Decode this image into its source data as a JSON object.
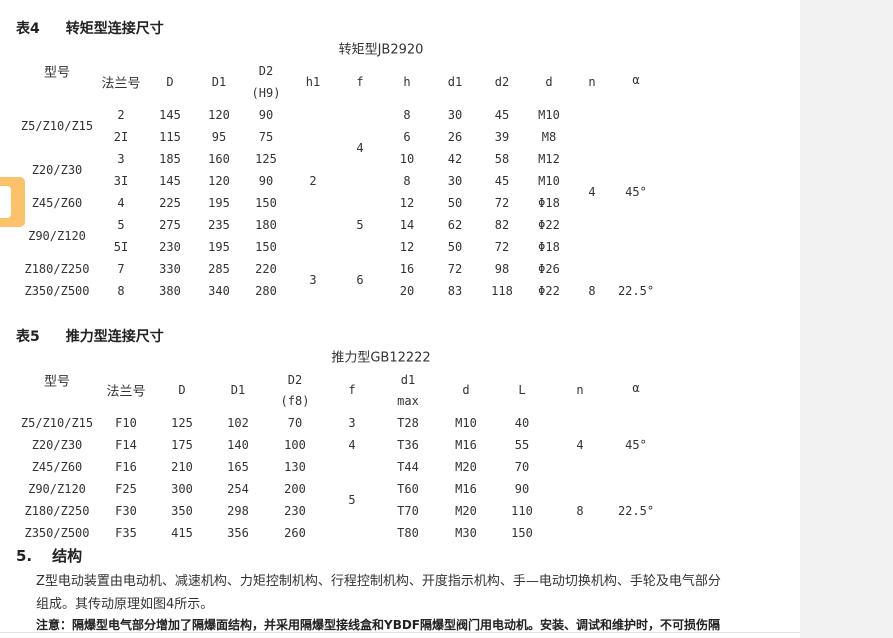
{
  "table4": {
    "label": "表4",
    "title": "转矩型连接尺寸",
    "subtitle": "转矩型JB2920",
    "headers": {
      "model": "型号",
      "flange": "法兰号",
      "D": "D",
      "D1": "D1",
      "D2": "D2",
      "D2_sub": "(H9)",
      "h1": "h1",
      "f": "f",
      "h": "h",
      "d1": "d1",
      "d2": "d2",
      "d": "d",
      "n": "n",
      "alpha": "α"
    },
    "models": [
      "Z5/Z10/Z15",
      "Z20/Z30",
      "Z45/Z60",
      "Z90/Z120",
      "Z180/Z250",
      "Z350/Z500"
    ],
    "rows": [
      [
        "2",
        "145",
        "120",
        "90",
        "8",
        "30",
        "45",
        "M10"
      ],
      [
        "2I",
        "115",
        "95",
        "75",
        "6",
        "26",
        "39",
        "M8"
      ],
      [
        "3",
        "185",
        "160",
        "125",
        "10",
        "42",
        "58",
        "M12"
      ],
      [
        "3I",
        "145",
        "120",
        "90",
        "8",
        "30",
        "45",
        "M10"
      ],
      [
        "4",
        "225",
        "195",
        "150",
        "12",
        "50",
        "72",
        "Φ18"
      ],
      [
        "5",
        "275",
        "235",
        "180",
        "14",
        "62",
        "82",
        "Φ22"
      ],
      [
        "5I",
        "230",
        "195",
        "150",
        "12",
        "50",
        "72",
        "Φ18"
      ],
      [
        "7",
        "330",
        "285",
        "220",
        "16",
        "72",
        "98",
        "Φ26"
      ],
      [
        "8",
        "380",
        "340",
        "280",
        "20",
        "83",
        "118",
        "Φ22"
      ]
    ],
    "h1": [
      "2",
      "3"
    ],
    "f": [
      "4",
      "5",
      "6"
    ],
    "n": [
      "4",
      "8"
    ],
    "alpha": [
      "45°",
      "22.5°"
    ]
  },
  "table5": {
    "label": "表5",
    "title": "推力型连接尺寸",
    "subtitle": "推力型GB12222",
    "headers": {
      "model": "型号",
      "flange": "法兰号",
      "D": "D",
      "D1": "D1",
      "D2": "D2",
      "D2_sub": "(f8)",
      "f": "f",
      "d1": "d1",
      "d1_sub": "max",
      "d": "d",
      "L": "L",
      "n": "n",
      "alpha": "α"
    },
    "rows": [
      [
        "Z5/Z10/Z15",
        "F10",
        "125",
        "102",
        "70",
        "T28",
        "M10",
        "40"
      ],
      [
        "Z20/Z30",
        "F14",
        "175",
        "140",
        "100",
        "T36",
        "M16",
        "55"
      ],
      [
        "Z45/Z60",
        "F16",
        "210",
        "165",
        "130",
        "T44",
        "M20",
        "70"
      ],
      [
        "Z90/Z120",
        "F25",
        "300",
        "254",
        "200",
        "T60",
        "M16",
        "90"
      ],
      [
        "Z180/Z250",
        "F30",
        "350",
        "298",
        "230",
        "T70",
        "M20",
        "110"
      ],
      [
        "Z350/Z500",
        "F35",
        "415",
        "356",
        "260",
        "T80",
        "M30",
        "150"
      ]
    ],
    "f": [
      "3",
      "4",
      "5"
    ],
    "n": [
      "4",
      "8"
    ],
    "alpha": [
      "45°",
      "22.5°"
    ]
  },
  "section": {
    "number": "5.",
    "title": "结构",
    "para1": "Z型电动装置由电动机、减速机构、力矩控制机构、行程控制机构、开度指示机构、手—电动切换机构、手轮及电气部分",
    "para2": "组成。其传动原理如图4所示。",
    "note": "注意：隔爆型电气部分增加了隔爆面结构，并采用隔爆型接线盒和YBDF隔爆型阀门用电动机。安装、调试和维护时，不可损伤隔"
  },
  "colors": {
    "tab": "#fcc26a",
    "sidebar": "#f2f2f2"
  }
}
